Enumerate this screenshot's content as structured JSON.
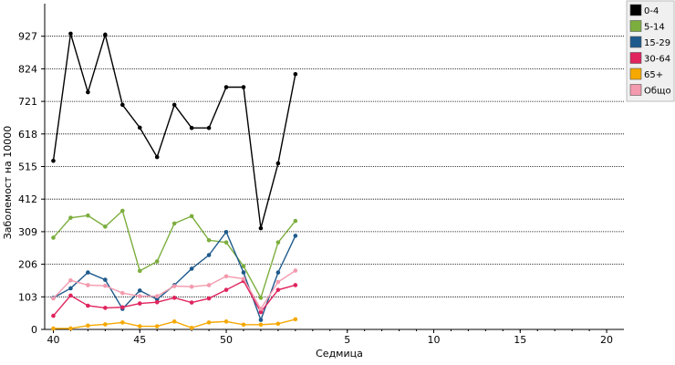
{
  "chart_data": {
    "type": "line",
    "title": "",
    "xlabel": "Седмица",
    "ylabel": "Заболемост на 10000",
    "ylim": [
      0,
      1030
    ],
    "grid": true,
    "legend_position": "top-right",
    "x_ticks": [
      {
        "label": "40",
        "week": 40
      },
      {
        "label": "45",
        "week": 45
      },
      {
        "label": "50",
        "week": 50
      },
      {
        "label": "5",
        "week": 57
      },
      {
        "label": "10",
        "week": 62
      },
      {
        "label": "15",
        "week": 67
      },
      {
        "label": "20",
        "week": 72
      }
    ],
    "y_ticks": [
      0,
      103,
      206,
      309,
      412,
      515,
      618,
      721,
      824,
      927
    ],
    "weeks": [
      40,
      41,
      42,
      43,
      44,
      45,
      46,
      47,
      48,
      49,
      50,
      51,
      52,
      53,
      54
    ],
    "series": [
      {
        "name": "0-4",
        "color": "#000000",
        "values": [
          533,
          935,
          750,
          932,
          710,
          638,
          545,
          710,
          637,
          637,
          766,
          766,
          320,
          525,
          807
        ]
      },
      {
        "name": "5-14",
        "color": "#7cae3e",
        "values": [
          290,
          353,
          360,
          325,
          375,
          185,
          215,
          335,
          358,
          282,
          275,
          200,
          100,
          275,
          343
        ]
      },
      {
        "name": "15-29",
        "color": "#1f5a8c",
        "values": [
          100,
          130,
          180,
          157,
          65,
          123,
          95,
          140,
          192,
          235,
          308,
          180,
          30,
          180,
          296
        ]
      },
      {
        "name": "30-64",
        "color": "#e0245e",
        "values": [
          43,
          107,
          75,
          68,
          70,
          82,
          86,
          100,
          85,
          98,
          125,
          153,
          55,
          125,
          140
        ]
      },
      {
        "name": "65+",
        "color": "#f5a800",
        "values": [
          3,
          3,
          12,
          16,
          22,
          10,
          10,
          25,
          5,
          22,
          25,
          15,
          15,
          18,
          32
        ]
      },
      {
        "name": "Общо",
        "color": "#f49aae",
        "values": [
          98,
          155,
          140,
          138,
          115,
          105,
          105,
          137,
          135,
          140,
          168,
          160,
          65,
          150,
          186
        ]
      }
    ]
  }
}
